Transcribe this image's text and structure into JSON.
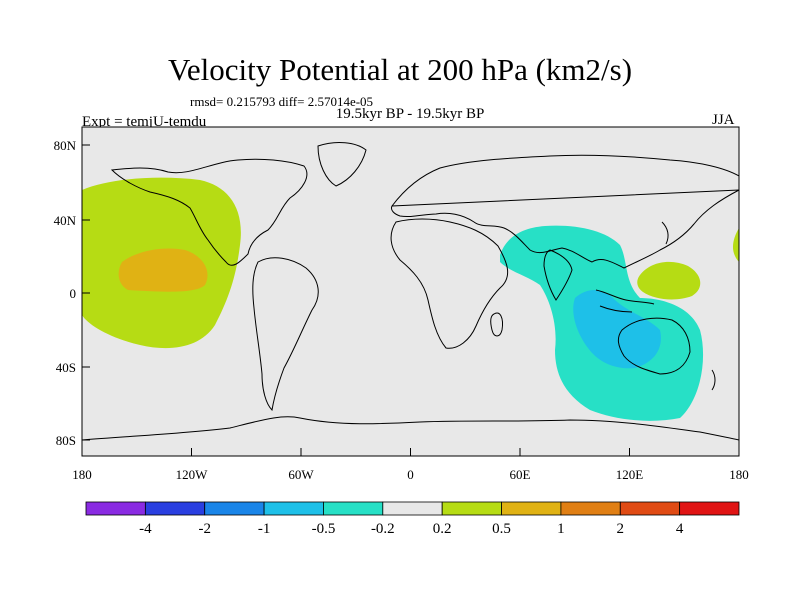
{
  "figure": {
    "title": "Velocity Potential at 200 hPa (km2/s)",
    "stats": "rmsd= 0.215793  diff= 2.57014e-05",
    "period": "19.5kyr BP - 19.5kyr BP",
    "experiment": "Expt = temjU-temdu",
    "season": "JJA"
  },
  "axes": {
    "x_ticks": [
      "180",
      "120W",
      "60W",
      "0",
      "60E",
      "120E",
      "180"
    ],
    "y_ticks": [
      "80N",
      "40N",
      "0",
      "40S",
      "80S"
    ]
  },
  "colorbar": {
    "colors": [
      "#8a2be2",
      "#2a3fe0",
      "#1a85e8",
      "#1ec0e8",
      "#27e0c6",
      "#e8e8e8",
      "#b6dc14",
      "#e0b214",
      "#e07f14",
      "#e04b14",
      "#e01414"
    ],
    "labels": [
      "-4",
      "-2",
      "-1",
      "-0.5",
      "-0.2",
      "0.2",
      "0.5",
      "1",
      "2",
      "4"
    ]
  }
}
